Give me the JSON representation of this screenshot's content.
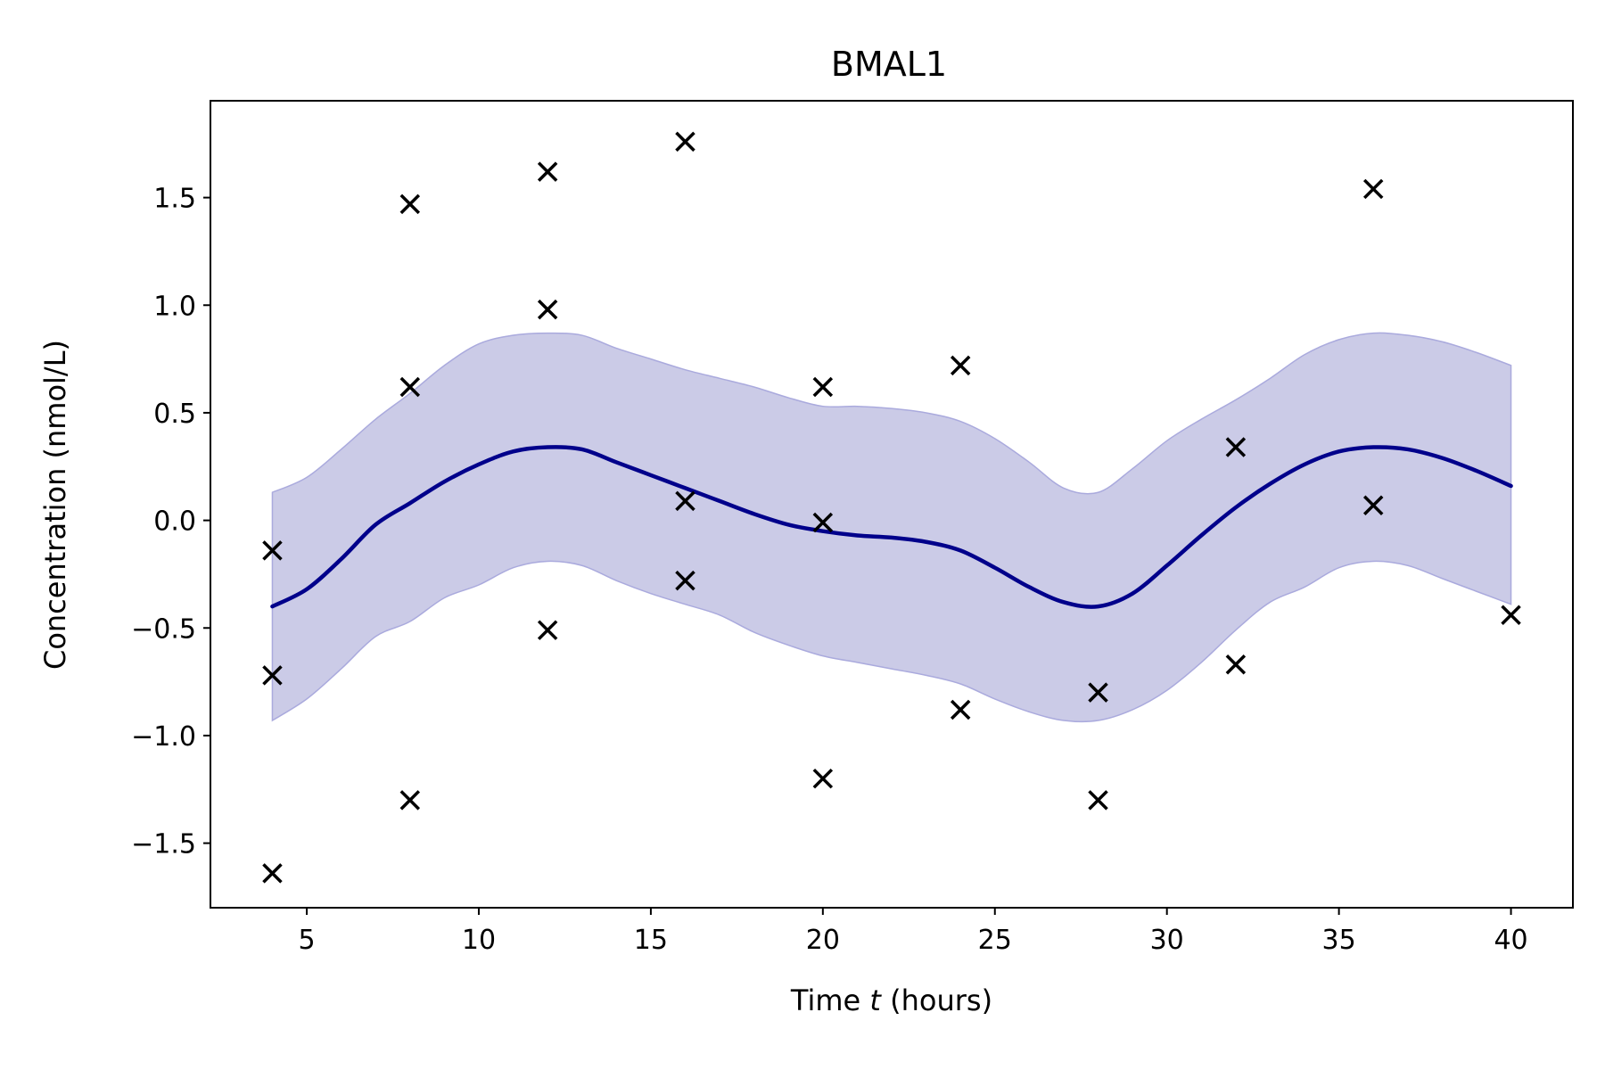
{
  "chart_data": {
    "type": "line",
    "title": "BMAL1",
    "xlabel_prefix": "Time ",
    "xlabel_var": "t",
    "xlabel_suffix": " (hours)",
    "ylabel": "Concentration (nmol/L)",
    "xlim": [
      2.2,
      41.8
    ],
    "ylim": [
      -1.8,
      1.95
    ],
    "xticks": [
      5,
      10,
      15,
      20,
      25,
      30,
      35,
      40
    ],
    "xtick_labels": [
      "5",
      "10",
      "15",
      "20",
      "25",
      "30",
      "35",
      "40"
    ],
    "yticks": [
      -1.5,
      -1.0,
      -0.5,
      0.0,
      0.5,
      1.0,
      1.5
    ],
    "ytick_labels": [
      "−1.5",
      "−1.0",
      "−0.5",
      "0.0",
      "0.5",
      "1.0",
      "1.5"
    ],
    "grid": false,
    "colors": {
      "mean_line": "#00008b",
      "band_fill": "#cbcbe7",
      "band_edge": "#aaaadd",
      "markers": "#000000"
    },
    "mean": {
      "x": [
        4,
        5,
        6,
        7,
        8,
        9,
        10,
        11,
        12,
        13,
        14,
        15,
        16,
        17,
        18,
        19,
        20,
        21,
        22,
        23,
        24,
        25,
        26,
        27,
        28,
        29,
        30,
        31,
        32,
        33,
        34,
        35,
        36,
        37,
        38,
        39,
        40
      ],
      "y": [
        -0.4,
        -0.32,
        -0.18,
        -0.02,
        0.08,
        0.18,
        0.26,
        0.32,
        0.34,
        0.33,
        0.27,
        0.21,
        0.15,
        0.09,
        0.03,
        -0.02,
        -0.05,
        -0.07,
        -0.08,
        -0.1,
        -0.14,
        -0.22,
        -0.31,
        -0.38,
        -0.4,
        -0.34,
        -0.21,
        -0.07,
        0.06,
        0.17,
        0.26,
        0.32,
        0.34,
        0.33,
        0.29,
        0.23,
        0.16
      ]
    },
    "band": {
      "x": [
        4,
        5,
        6,
        7,
        8,
        9,
        10,
        11,
        12,
        13,
        14,
        15,
        16,
        17,
        18,
        19,
        20,
        21,
        22,
        23,
        24,
        25,
        26,
        27,
        28,
        29,
        30,
        31,
        32,
        33,
        34,
        35,
        36,
        37,
        38,
        39,
        40
      ],
      "upper": [
        0.13,
        0.2,
        0.33,
        0.47,
        0.59,
        0.72,
        0.82,
        0.86,
        0.87,
        0.86,
        0.8,
        0.75,
        0.7,
        0.66,
        0.62,
        0.57,
        0.53,
        0.53,
        0.52,
        0.5,
        0.46,
        0.38,
        0.27,
        0.15,
        0.13,
        0.24,
        0.37,
        0.47,
        0.56,
        0.66,
        0.77,
        0.84,
        0.87,
        0.86,
        0.83,
        0.78,
        0.72
      ],
      "lower": [
        -0.93,
        -0.83,
        -0.69,
        -0.54,
        -0.47,
        -0.36,
        -0.3,
        -0.22,
        -0.19,
        -0.21,
        -0.28,
        -0.34,
        -0.39,
        -0.44,
        -0.52,
        -0.58,
        -0.63,
        -0.66,
        -0.69,
        -0.72,
        -0.76,
        -0.83,
        -0.89,
        -0.93,
        -0.93,
        -0.88,
        -0.79,
        -0.66,
        -0.51,
        -0.38,
        -0.31,
        -0.22,
        -0.19,
        -0.21,
        -0.27,
        -0.33,
        -0.39
      ]
    },
    "points": {
      "x": [
        4,
        4,
        4,
        8,
        8,
        8,
        12,
        12,
        12,
        16,
        16,
        16,
        20,
        20,
        20,
        24,
        24,
        28,
        28,
        32,
        32,
        36,
        36,
        40
      ],
      "y": [
        -0.14,
        -0.72,
        -1.64,
        1.47,
        0.62,
        -1.3,
        1.62,
        0.98,
        -0.51,
        1.76,
        0.09,
        -0.28,
        0.62,
        -0.01,
        -1.2,
        0.72,
        -0.88,
        -0.8,
        -1.3,
        0.34,
        -0.67,
        1.54,
        0.07,
        -0.44
      ]
    }
  }
}
